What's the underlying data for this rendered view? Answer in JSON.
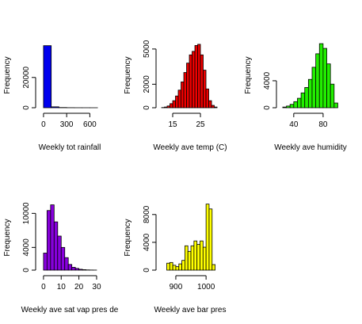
{
  "chart_data": [
    {
      "type": "histogram",
      "x_label": "Weekly tot rainfall",
      "y_label": "Frequency",
      "color": "#0000ee",
      "bins": [
        0,
        100,
        200,
        300,
        400,
        500,
        600,
        700
      ],
      "counts": [
        41000,
        600,
        150,
        50,
        20,
        10,
        5
      ],
      "xlim": [
        -30,
        750
      ],
      "xticks": [
        0,
        300,
        600
      ],
      "ylim": [
        0,
        45000
      ],
      "yticks": [
        0,
        20000
      ]
    },
    {
      "type": "histogram",
      "x_label": "Weekly ave temp (C)",
      "y_label": "Frequency",
      "color": "#ee0000",
      "bins": [
        11,
        12,
        13,
        14,
        15,
        16,
        17,
        18,
        19,
        20,
        21,
        22,
        23,
        24,
        25,
        26,
        27,
        28,
        29,
        30,
        31
      ],
      "counts": [
        20,
        60,
        150,
        350,
        600,
        1000,
        1500,
        2200,
        3000,
        3800,
        4500,
        4800,
        5300,
        5400,
        4500,
        3200,
        1600,
        600,
        200,
        60
      ],
      "xlim": [
        11,
        32.7
      ],
      "xticks": [
        15,
        25
      ],
      "ylim": [
        0,
        5800
      ],
      "yticks": [
        0,
        2000,
        5000
      ]
    },
    {
      "type": "histogram",
      "x_label": "Weekly ave humidity",
      "y_label": "Frequency",
      "color": "#22ee00",
      "bins": [
        25,
        30,
        35,
        40,
        45,
        50,
        55,
        60,
        65,
        70,
        75,
        80,
        85,
        90,
        95,
        100
      ],
      "counts": [
        100,
        250,
        500,
        900,
        1400,
        2200,
        3000,
        4200,
        6000,
        8000,
        9500,
        8800,
        6500,
        3500,
        700
      ],
      "xlim": [
        24,
        106
      ],
      "xticks": [
        40,
        80
      ],
      "ylim": [
        0,
        10100
      ],
      "yticks": [
        0,
        4000
      ]
    },
    {
      "type": "histogram",
      "x_label": "Weekly ave sat vap pres de",
      "y_label": "Frequency",
      "color": "#8800dd",
      "bins": [
        0,
        2,
        4,
        6,
        8,
        10,
        12,
        14,
        16,
        18,
        20,
        22,
        24,
        26,
        28,
        30
      ],
      "counts": [
        3000,
        10500,
        11500,
        8500,
        6000,
        4000,
        2200,
        1000,
        500,
        300,
        150,
        80,
        40,
        20,
        10
      ],
      "xlim": [
        -1.3,
        32.7
      ],
      "xticks": [
        0,
        10,
        20,
        30
      ],
      "ylim": [
        0,
        12000
      ],
      "yticks": [
        0,
        4000,
        10000
      ]
    },
    {
      "type": "histogram",
      "x_label": "Weekly ave bar pres",
      "y_label": "Frequency",
      "color": "#ffff00",
      "bins": [
        870,
        880,
        890,
        900,
        910,
        920,
        930,
        940,
        950,
        960,
        970,
        980,
        990,
        1000,
        1010,
        1020,
        1030
      ],
      "counts": [
        1000,
        1100,
        700,
        500,
        900,
        1400,
        3500,
        2700,
        3500,
        4200,
        3700,
        4200,
        3300,
        9500,
        8800,
        800
      ],
      "xlim": [
        853,
        1052
      ],
      "xticks": [
        900,
        1000
      ],
      "ylim": [
        0,
        9800
      ],
      "yticks": [
        0,
        4000,
        8000
      ]
    }
  ]
}
